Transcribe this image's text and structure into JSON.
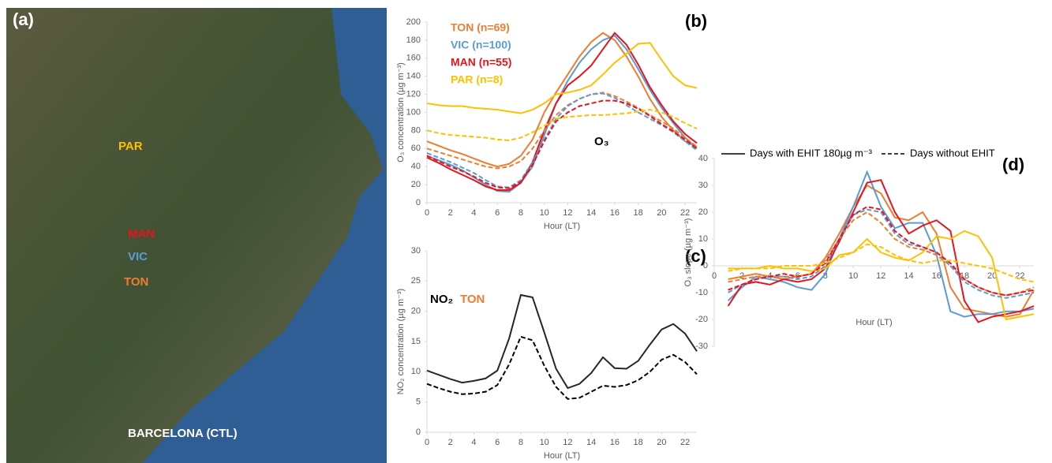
{
  "map": {
    "panel_label": "(a)",
    "places": [
      {
        "label": "PAR",
        "color": "#ffc000"
      },
      {
        "label": "MAN",
        "color": "#e8141c"
      },
      {
        "label": "VIC",
        "color": "#5b9bd5"
      },
      {
        "label": "TON",
        "color": "#ed7d31"
      },
      {
        "label": "BARCELONA (CTL)",
        "color": "#ffffff"
      }
    ]
  },
  "chart_data": [
    {
      "type": "line",
      "panel_label": "(b)",
      "ylabel": "O₃ concentration (µg m⁻³)",
      "xlabel": "Hour (LT)",
      "annotations": [
        {
          "text": "O₃",
          "color": "#000000"
        }
      ],
      "x": [
        0,
        1,
        2,
        3,
        4,
        5,
        6,
        7,
        8,
        9,
        10,
        11,
        12,
        13,
        14,
        15,
        16,
        17,
        18,
        19,
        20,
        21,
        22,
        23
      ],
      "xlim": [
        0,
        23
      ],
      "xticks": [
        0,
        2,
        4,
        6,
        8,
        10,
        12,
        14,
        16,
        18,
        20,
        22
      ],
      "ylim": [
        0,
        200
      ],
      "yticks": [
        0,
        20,
        40,
        60,
        80,
        100,
        120,
        140,
        160,
        180,
        200
      ],
      "series": [
        {
          "name": "TON (n=69)",
          "color": "#ed7d31",
          "values": [
            68,
            63,
            58,
            54,
            49,
            44,
            40,
            43,
            52,
            70,
            100,
            122,
            142,
            162,
            178,
            188,
            180,
            162,
            140,
            115,
            95,
            80,
            68,
            62
          ]
        },
        {
          "name": "VIC (n=100)",
          "color": "#5b9bd5",
          "values": [
            52,
            47,
            42,
            36,
            28,
            20,
            13,
            12,
            22,
            40,
            75,
            110,
            135,
            155,
            170,
            180,
            185,
            170,
            148,
            125,
            105,
            88,
            72,
            60
          ]
        },
        {
          "name": "MAN (n=55)",
          "color": "#e8141c",
          "values": [
            50,
            44,
            37,
            31,
            25,
            18,
            14,
            14,
            22,
            45,
            80,
            110,
            130,
            140,
            152,
            170,
            188,
            175,
            153,
            128,
            108,
            90,
            76,
            66
          ]
        },
        {
          "name": "PAR (n=8)",
          "color": "#ffc000",
          "values": [
            110,
            108,
            107,
            107,
            105,
            104,
            103,
            101,
            99,
            103,
            110,
            120,
            122,
            125,
            130,
            142,
            155,
            165,
            176,
            177,
            158,
            140,
            130,
            127
          ]
        },
        {
          "color": "#ed7d31",
          "dash": true,
          "values": [
            60,
            56,
            52,
            48,
            44,
            40,
            38,
            40,
            46,
            60,
            80,
            97,
            108,
            115,
            120,
            122,
            118,
            112,
            105,
            97,
            90,
            82,
            72,
            62
          ]
        },
        {
          "color": "#5b9bd5",
          "dash": true,
          "values": [
            55,
            50,
            45,
            39,
            33,
            25,
            18,
            17,
            25,
            45,
            70,
            93,
            107,
            115,
            120,
            121,
            116,
            108,
            100,
            93,
            86,
            78,
            68,
            58
          ]
        },
        {
          "color": "#e8141c",
          "dash": true,
          "values": [
            52,
            46,
            40,
            35,
            29,
            22,
            17,
            16,
            23,
            42,
            68,
            90,
            100,
            107,
            110,
            113,
            113,
            110,
            104,
            96,
            87,
            79,
            70,
            60
          ]
        },
        {
          "color": "#ffc000",
          "dash": true,
          "values": [
            80,
            77,
            75,
            74,
            73,
            72,
            70,
            69,
            72,
            78,
            85,
            93,
            95,
            96,
            97,
            97,
            98,
            99,
            101,
            103,
            100,
            95,
            88,
            82
          ]
        }
      ]
    },
    {
      "type": "line",
      "panel_label": "(c)",
      "ylabel": "NO₂ concentration (µg m⁻³)",
      "xlabel": "Hour (LT)",
      "annotations": [
        {
          "text": "NO₂",
          "color": "#000000"
        },
        {
          "text": "TON",
          "color": "#ed7d31"
        }
      ],
      "x": [
        0,
        1,
        2,
        3,
        4,
        5,
        6,
        7,
        8,
        9,
        10,
        11,
        12,
        13,
        14,
        15,
        16,
        17,
        18,
        19,
        20,
        21,
        22,
        23
      ],
      "xlim": [
        0,
        23
      ],
      "xticks": [
        0,
        2,
        4,
        6,
        8,
        10,
        12,
        14,
        16,
        18,
        20,
        22
      ],
      "ylim": [
        0,
        30
      ],
      "yticks": [
        0,
        5,
        10,
        15,
        20,
        25,
        30
      ],
      "series": [
        {
          "color": "#262626",
          "values": [
            10.2,
            9.5,
            8.8,
            8.2,
            8.5,
            8.9,
            10.2,
            15.5,
            22.7,
            22.3,
            16.5,
            10.5,
            7.3,
            8,
            9.8,
            12.4,
            10.6,
            10.5,
            11.8,
            14.5,
            17,
            17.9,
            16.3,
            13.4
          ]
        },
        {
          "color": "#000000",
          "dash": true,
          "values": [
            8,
            7.3,
            6.7,
            6.3,
            6.4,
            6.7,
            7.8,
            11.2,
            15.8,
            15.2,
            11,
            7.5,
            5.5,
            5.7,
            6.7,
            7.7,
            7.5,
            7.8,
            8.6,
            10,
            12,
            12.8,
            11.6,
            9.6
          ]
        }
      ]
    },
    {
      "type": "line",
      "panel_label": "(d)",
      "ylabel": "O₃ slope (µg m⁻³)",
      "xlabel": "Hour (LT)",
      "line_styles": [
        {
          "label": "Days with EHIT 180µg m⁻³",
          "dash": false
        },
        {
          "label": "Days without EHIT",
          "dash": true
        }
      ],
      "x": [
        1,
        2,
        3,
        4,
        5,
        6,
        7,
        8,
        9,
        10,
        11,
        12,
        13,
        14,
        15,
        16,
        17,
        18,
        19,
        20,
        21,
        22,
        23
      ],
      "xlim": [
        0,
        23
      ],
      "xticks": [
        0,
        2,
        4,
        6,
        8,
        10,
        12,
        14,
        16,
        18,
        20,
        22
      ],
      "ylim": [
        -30,
        40
      ],
      "yticks": [
        -30,
        -20,
        -10,
        0,
        10,
        20,
        30,
        40
      ],
      "series": [
        {
          "color": "#ed7d31",
          "values": [
            -5,
            -4,
            -3,
            -4,
            -5,
            -4,
            -3,
            3,
            12,
            22,
            30,
            27,
            18,
            17,
            20,
            12,
            -8,
            -16,
            -17,
            -18,
            -19,
            -18,
            -9
          ]
        },
        {
          "color": "#5b9bd5",
          "values": [
            -13,
            -8,
            -4,
            -5,
            -6,
            -8,
            -9,
            -3,
            10,
            22,
            35,
            22,
            14,
            16,
            16,
            4,
            -17,
            -19,
            -18,
            -18,
            -17,
            -17,
            -16
          ]
        },
        {
          "color": "#e8141c",
          "values": [
            -15,
            -7,
            -6,
            -7,
            -5,
            -6,
            -5,
            -1,
            9,
            20,
            31,
            32,
            20,
            12,
            15,
            17,
            13,
            -13,
            -21,
            -19,
            -18,
            -17,
            -15
          ]
        },
        {
          "color": "#ffc000",
          "values": [
            -1,
            -1,
            -1,
            0,
            -1,
            -1,
            -2,
            -1,
            4,
            5,
            10,
            5,
            3,
            2,
            5,
            11,
            10,
            13,
            11,
            3,
            -20,
            -19,
            -18
          ]
        },
        {
          "color": "#ed7d31",
          "dash": true,
          "values": [
            -6,
            -5,
            -4,
            -4,
            -4,
            -4,
            -3,
            2,
            10,
            17,
            20,
            16,
            10,
            7,
            6,
            4,
            0,
            -5,
            -8,
            -10,
            -11,
            -10,
            -8
          ]
        },
        {
          "color": "#5b9bd5",
          "dash": true,
          "values": [
            -10,
            -7,
            -5,
            -4,
            -4,
            -5,
            -4,
            0,
            10,
            19,
            21,
            20,
            12,
            8,
            7,
            5,
            0,
            -6,
            -9,
            -11,
            -12,
            -11,
            -10
          ]
        },
        {
          "color": "#e8141c",
          "dash": true,
          "values": [
            -9,
            -7,
            -5,
            -4,
            -3,
            -4,
            -3,
            1,
            10,
            19,
            22,
            21,
            13,
            9,
            7,
            5,
            1,
            -5,
            -8,
            -10,
            -11,
            -10,
            -9
          ]
        },
        {
          "color": "#ffc000",
          "dash": true,
          "values": [
            -2,
            -1,
            -1,
            -1,
            0,
            0,
            0,
            1,
            3,
            5,
            8,
            7,
            4,
            2,
            1,
            2,
            2,
            1,
            0,
            -1,
            -3,
            -5,
            -6
          ]
        }
      ]
    }
  ]
}
